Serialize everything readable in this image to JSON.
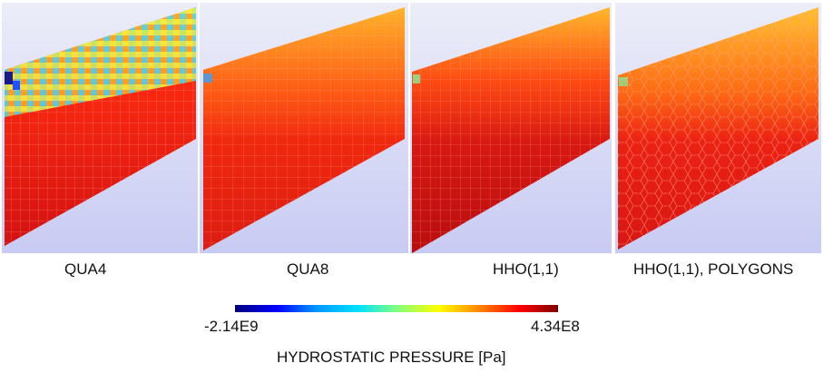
{
  "panels": [
    {
      "id": "qua4",
      "label": "QUA4"
    },
    {
      "id": "qua8",
      "label": "QUA8"
    },
    {
      "id": "hho",
      "label": "HHO(1,1)"
    },
    {
      "id": "hho-poly",
      "label": "HHO(1,1), POLYGONS"
    }
  ],
  "colorbar": {
    "min_label": "-2.14E9",
    "max_label": "4.34E8",
    "title": "HYDROSTATIC PRESSURE [Pa]",
    "colors": [
      "#00007f",
      "#0000ff",
      "#0096ff",
      "#00e0ff",
      "#7fff7f",
      "#ffff00",
      "#ff8c00",
      "#ff0000",
      "#7f0000"
    ]
  },
  "background_gradient": [
    "#e6e8f8",
    "#c9cdf4"
  ]
}
